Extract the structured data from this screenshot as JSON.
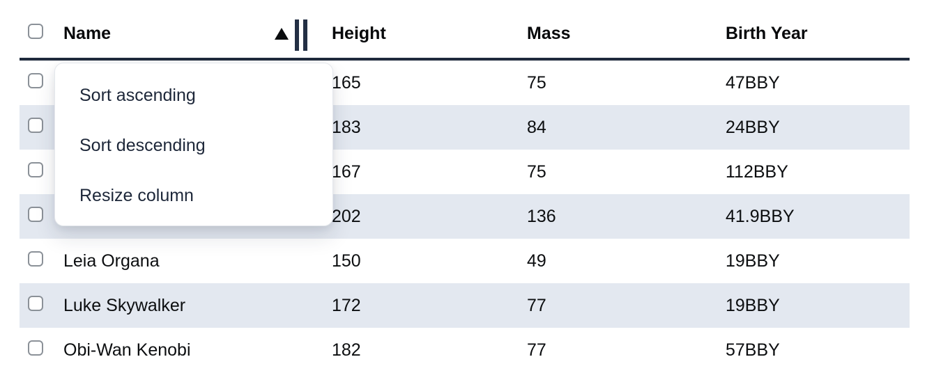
{
  "table": {
    "columns": {
      "name": "Name",
      "height": "Height",
      "mass": "Mass",
      "birth_year": "Birth Year"
    },
    "sort": {
      "column": "name",
      "direction": "ascending"
    },
    "rows": [
      {
        "name": "",
        "height": "165",
        "mass": "75",
        "birth_year": "47BBY"
      },
      {
        "name": "",
        "height": "183",
        "mass": "84",
        "birth_year": "24BBY"
      },
      {
        "name": "",
        "height": "167",
        "mass": "75",
        "birth_year": "112BBY"
      },
      {
        "name": "",
        "height": "202",
        "mass": "136",
        "birth_year": "41.9BBY"
      },
      {
        "name": "Leia Organa",
        "height": "150",
        "mass": "49",
        "birth_year": "19BBY"
      },
      {
        "name": "Luke Skywalker",
        "height": "172",
        "mass": "77",
        "birth_year": "19BBY"
      },
      {
        "name": "Obi-Wan Kenobi",
        "height": "182",
        "mass": "77",
        "birth_year": "57BBY"
      }
    ]
  },
  "context_menu": {
    "items": [
      {
        "label": "Sort ascending"
      },
      {
        "label": "Sort descending"
      },
      {
        "label": "Resize column"
      }
    ]
  },
  "colors": {
    "stripe": "#e3e8f0",
    "header_border": "#1f2a3c",
    "accent_dark": "#232f44",
    "menu_text": "#1d2739",
    "checkbox_border": "#8b9198"
  }
}
